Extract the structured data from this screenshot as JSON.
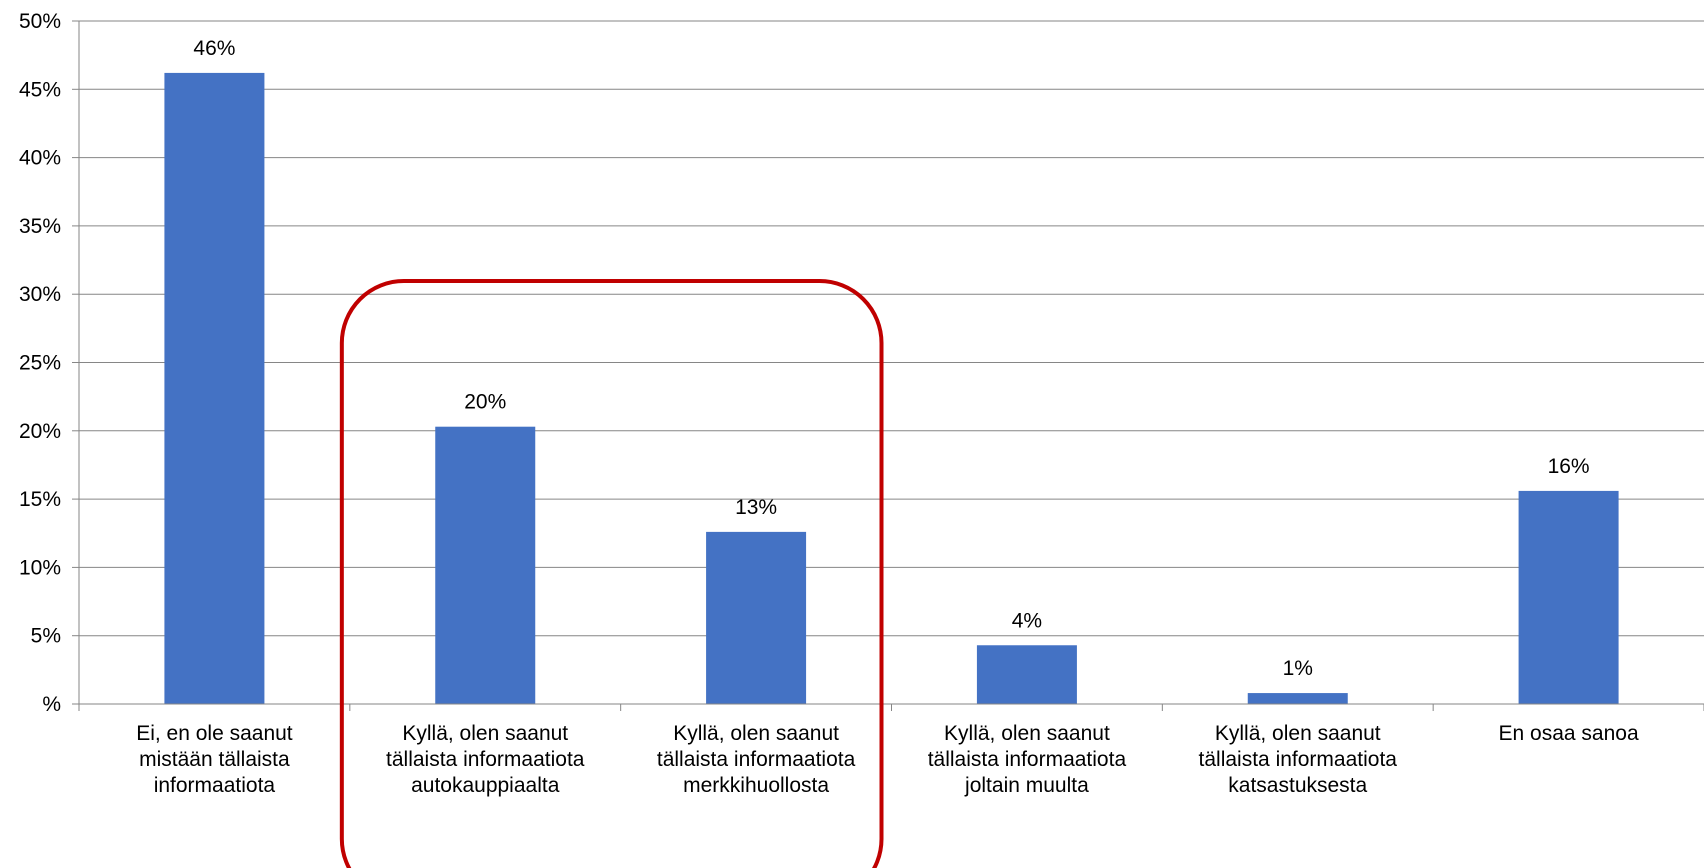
{
  "chart_data": {
    "type": "bar",
    "categories": [
      "Ei, en ole saanut mistään tällaista informaatiota",
      "Kyllä, olen saanut tällaista informaatiota autokauppiaalta",
      "Kyllä, olen saanut tällaista informaatiota merkkihuollosta",
      "Kyllä, olen saanut tällaista informaatiota joltain muulta",
      "Kyllä, olen saanut tällaista informaatiota katsastuksesta",
      "En osaa sanoa"
    ],
    "category_lines": [
      [
        "Ei, en ole saanut",
        "mistään tällaista",
        "informaatiota"
      ],
      [
        "Kyllä, olen saanut",
        "tällaista informaatiota",
        "autokauppiaalta"
      ],
      [
        "Kyllä, olen saanut",
        "tällaista informaatiota",
        "merkkihuollosta"
      ],
      [
        "Kyllä, olen saanut",
        "tällaista informaatiota",
        "joltain muulta"
      ],
      [
        "Kyllä, olen saanut",
        "tällaista informaatiota",
        "katsastuksesta"
      ],
      [
        "En osaa sanoa"
      ]
    ],
    "values": [
      46.2,
      20.3,
      12.6,
      4.3,
      0.8,
      15.6
    ],
    "data_labels": [
      "46%",
      "20%",
      "13%",
      "4%",
      "1%",
      "16%"
    ],
    "y_ticks": [
      "%",
      "5%",
      "10%",
      "15%",
      "20%",
      "25%",
      "30%",
      "35%",
      "40%",
      "45%",
      "50%"
    ],
    "ylim": [
      0,
      50
    ],
    "grid": true,
    "bar_color": "#4472C4",
    "highlight": {
      "categories": [
        1,
        2
      ],
      "color": "#C00000",
      "shape": "rounded-rectangle"
    }
  }
}
